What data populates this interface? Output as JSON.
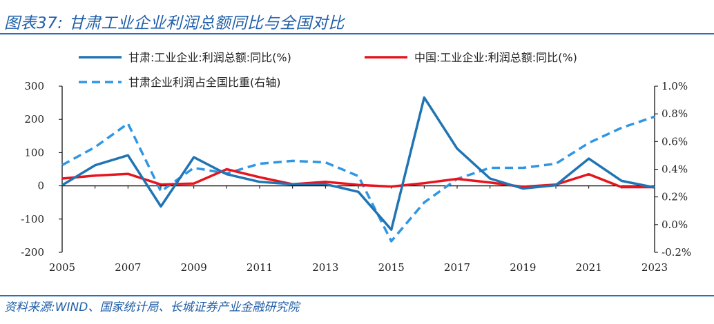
{
  "header": {
    "title": "图表37:  甘肃工业企业利润总额同比与全国对比"
  },
  "footer": {
    "source": "资料来源:WIND、国家统计局、长城证券产业金融研究院"
  },
  "chart_data": {
    "type": "line",
    "x": [
      2005,
      2006,
      2007,
      2008,
      2009,
      2010,
      2011,
      2012,
      2013,
      2014,
      2015,
      2016,
      2017,
      2018,
      2019,
      2020,
      2021,
      2022,
      2023
    ],
    "x_tick_labels": [
      "2005",
      "2007",
      "2009",
      "2011",
      "2013",
      "2015",
      "2017",
      "2019",
      "2021",
      "2023"
    ],
    "y_left": {
      "ylim": [
        -200,
        300
      ],
      "ticks": [
        "300",
        "200",
        "100",
        "0",
        "-100",
        "-200"
      ]
    },
    "y_right": {
      "ylim": [
        -0.2,
        1.0
      ],
      "ticks": [
        "1.0%",
        "0.8%",
        "0.6%",
        "0.4%",
        "0.2%",
        "0.0%",
        "-0.2%"
      ]
    },
    "series": [
      {
        "name": "甘肃:工业企业:利润总额:同比(%)",
        "axis": "left",
        "color": "#1f74b4",
        "style": "solid",
        "values": [
          2,
          62,
          92,
          -62,
          86,
          35,
          12,
          5,
          5,
          -18,
          -132,
          266,
          112,
          22,
          -8,
          2,
          82,
          15,
          -5
        ]
      },
      {
        "name": "中国:工业企业:利润总额:同比(%)",
        "axis": "left",
        "color": "#e8141c",
        "style": "solid",
        "values": [
          22,
          31,
          36,
          4,
          7,
          50,
          26,
          5,
          12,
          3,
          -2,
          8,
          21,
          10,
          -3,
          4,
          35,
          -4,
          -4
        ]
      },
      {
        "name": "甘肃企业利润占全国比重(右轴)",
        "axis": "right",
        "color": "#2f96e4",
        "style": "dashed",
        "values": [
          0.43,
          0.56,
          0.73,
          0.24,
          0.41,
          0.37,
          0.44,
          0.46,
          0.45,
          0.35,
          -0.12,
          0.16,
          0.33,
          0.41,
          0.41,
          0.44,
          0.59,
          0.7,
          0.78
        ]
      }
    ],
    "legend_placement": "top",
    "grid": false
  }
}
